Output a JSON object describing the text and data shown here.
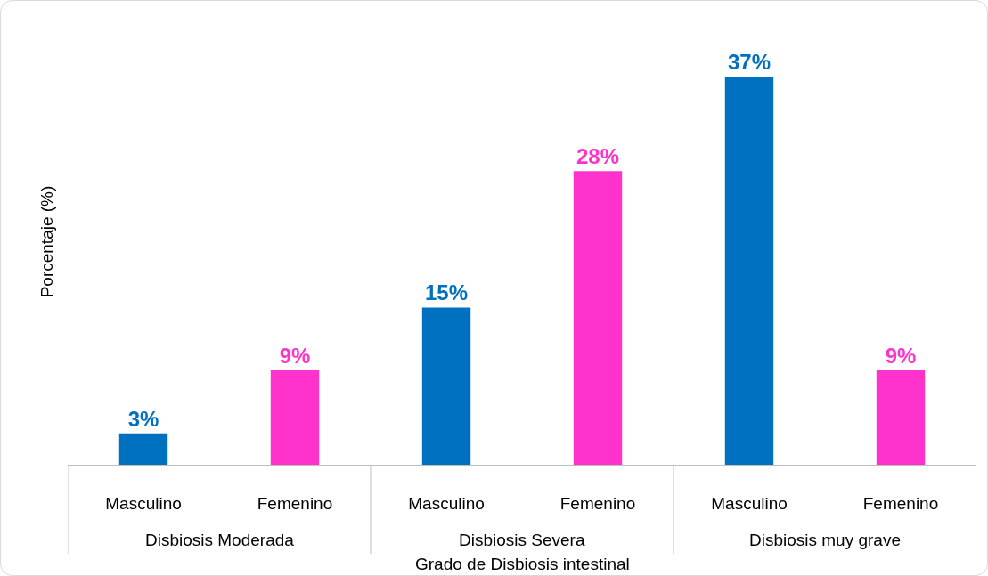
{
  "chart_data": {
    "type": "bar",
    "xlabel": "Grado de Disbiosis intestinal",
    "ylabel": "Porcentaje (%)",
    "categories": [
      "Masculino",
      "Femenino",
      "Masculino",
      "Femenino",
      "Masculino",
      "Femenino"
    ],
    "values": [
      3,
      9,
      15,
      28,
      37,
      9
    ],
    "colors": [
      "#0070c0",
      "#ff33cc",
      "#0070c0",
      "#ff33cc",
      "#0070c0",
      "#ff33cc"
    ],
    "value_labels": [
      "3%",
      "9%",
      "15%",
      "28%",
      "37%",
      "9%"
    ],
    "annotations": [
      "Disbiosis Moderada",
      "Disbiosis Severa",
      "Disbiosis muy grave"
    ],
    "tick_labels": "x"
  }
}
